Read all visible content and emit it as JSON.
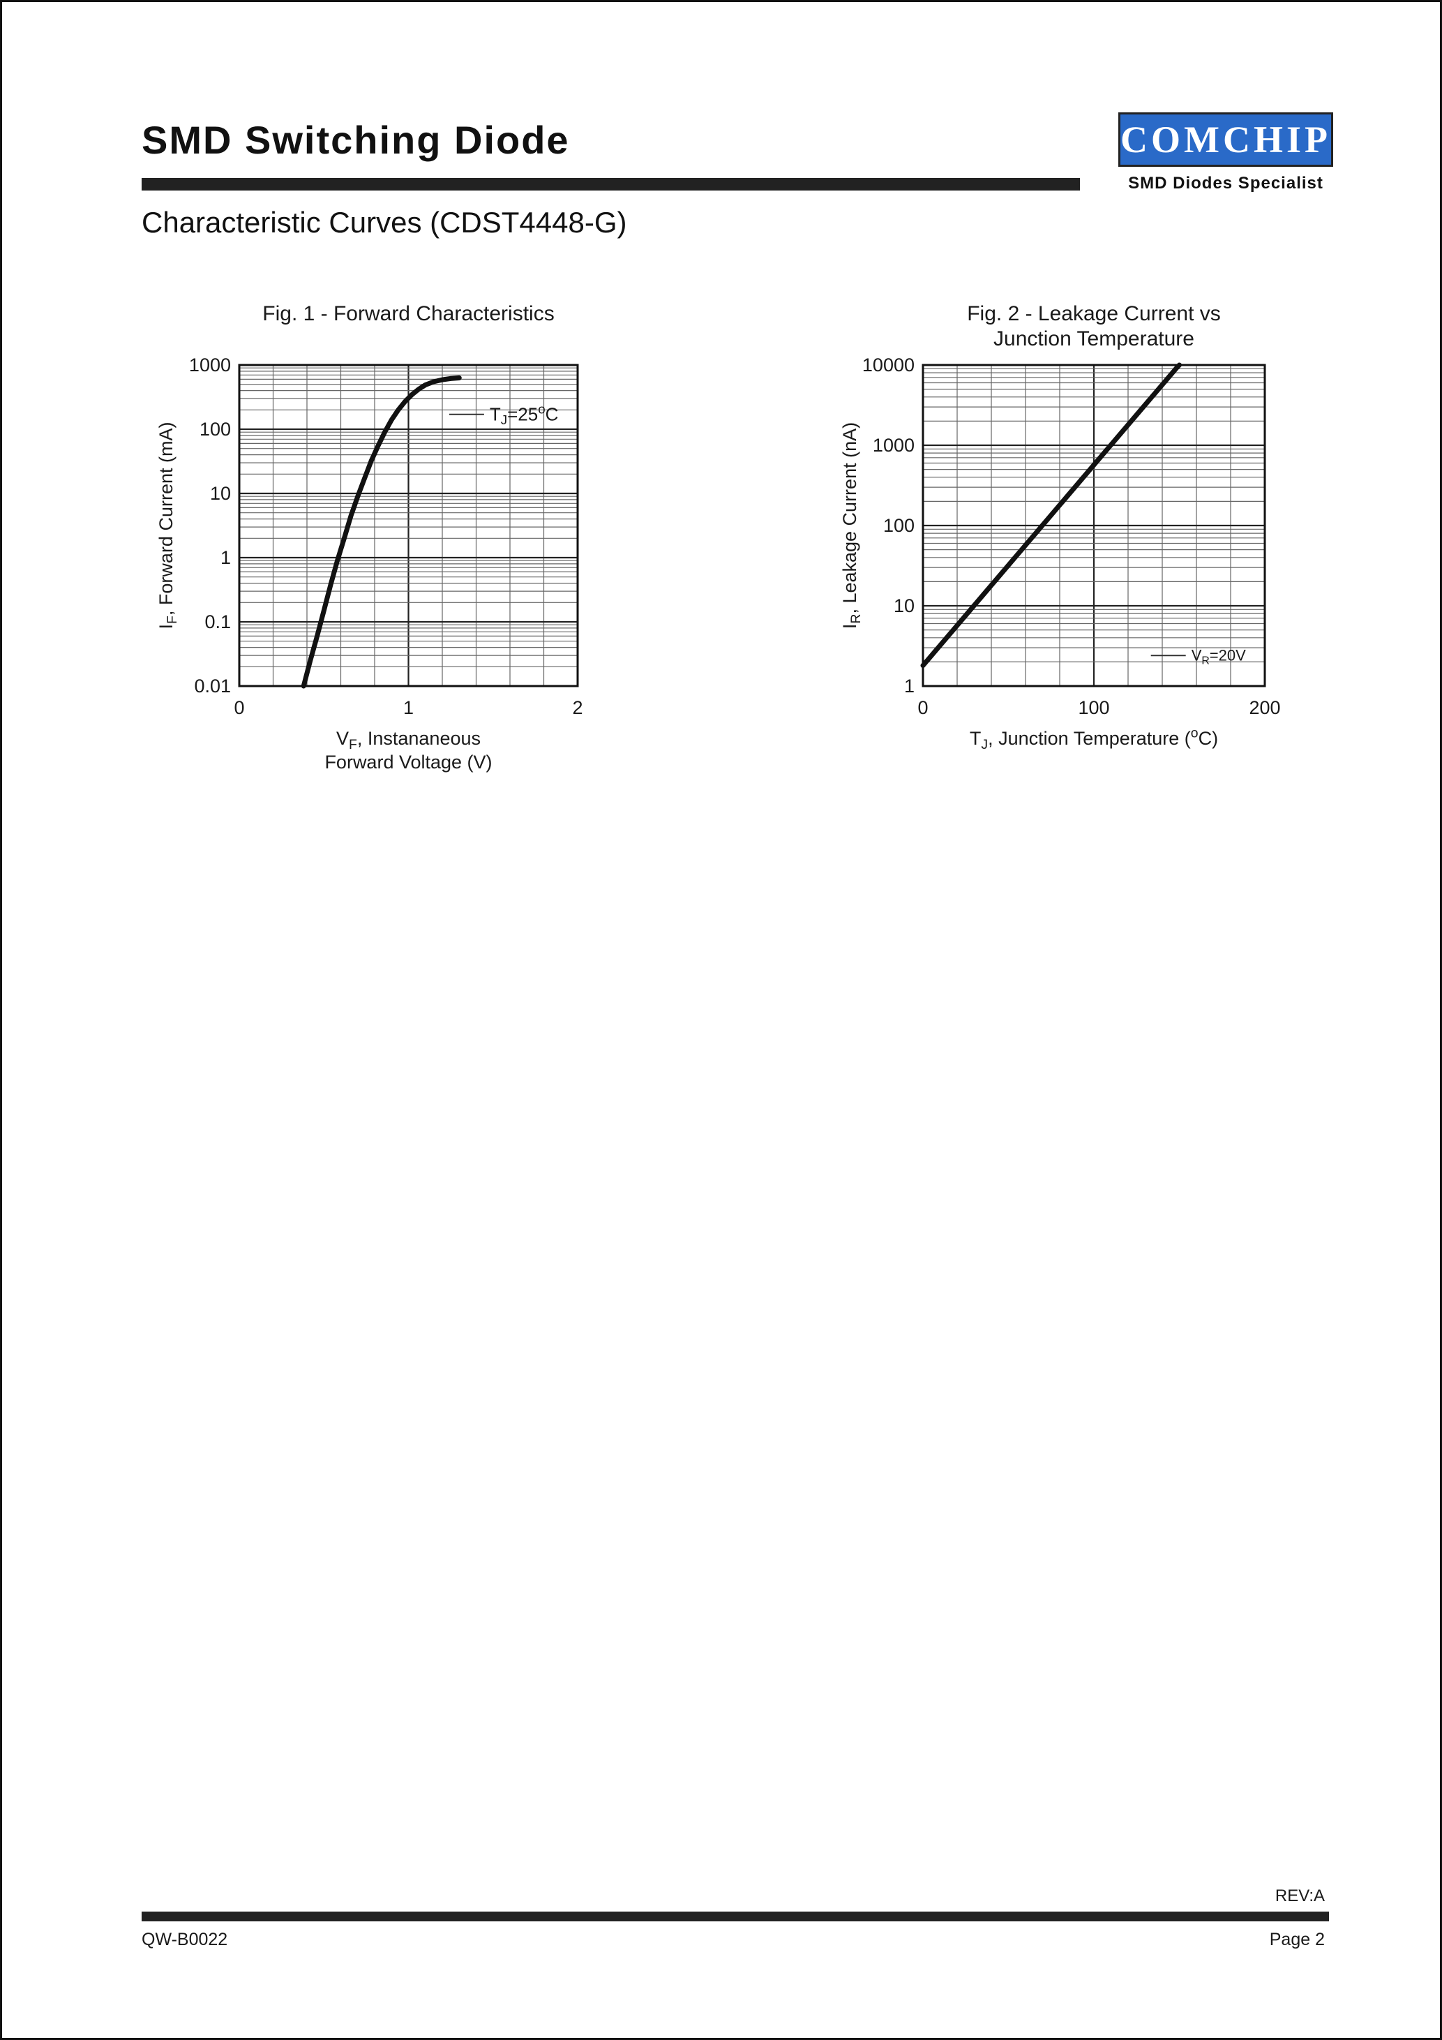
{
  "header": {
    "title": "SMD Switching Diode",
    "logo_text": "COMCHIP",
    "logo_tagline": "SMD Diodes Specialist",
    "subtitle": "Characteristic Curves (CDST4448-G)"
  },
  "footer": {
    "rev": "REV:A",
    "doc_number": "QW-B0022",
    "page": "Page 2"
  },
  "colors": {
    "logo_blue": "#2a6ac8",
    "ink": "#1a1a1a",
    "grid_minor": "#666666",
    "grid_major": "#222222"
  },
  "chart_data": [
    {
      "type": "line",
      "title_lines": [
        "Fig. 1 - Forward Characteristics"
      ],
      "xlabel_lines": [
        [
          {
            "t": "V"
          },
          {
            "t": "F",
            "sub": true
          },
          {
            "t": ", Instananeous"
          }
        ],
        [
          {
            "t": "Forward Voltage (V)"
          }
        ]
      ],
      "ylabel_segs": [
        {
          "t": "I"
        },
        {
          "t": "F",
          "sub": true
        },
        {
          "t": ", Forward Current (mA)"
        }
      ],
      "x": {
        "min": 0,
        "max": 2,
        "minor_step": 0.2,
        "ticks": [
          {
            "v": 0,
            "label": "0"
          },
          {
            "v": 1,
            "label": "1"
          },
          {
            "v": 2,
            "label": "2"
          }
        ]
      },
      "y": {
        "scale": "log",
        "min": 0.01,
        "max": 1000,
        "ticks": [
          {
            "v": 1000,
            "label": "1000"
          },
          {
            "v": 100,
            "label": "100"
          },
          {
            "v": 10,
            "label": "10"
          },
          {
            "v": 1,
            "label": "1"
          },
          {
            "v": 0.1,
            "label": "0.1"
          },
          {
            "v": 0.01,
            "label": "0.01"
          }
        ]
      },
      "annotation": {
        "segs": [
          {
            "t": "T"
          },
          {
            "t": "J",
            "sub": true
          },
          {
            "t": "=25"
          },
          {
            "t": "o",
            "sup": true
          },
          {
            "t": "C"
          }
        ],
        "x": 1.48,
        "y": 170
      },
      "series": [
        {
          "name": "Forward current vs forward voltage at TJ=25C",
          "points": [
            [
              0.38,
              0.01
            ],
            [
              0.42,
              0.025
            ],
            [
              0.46,
              0.06
            ],
            [
              0.5,
              0.15
            ],
            [
              0.54,
              0.38
            ],
            [
              0.58,
              0.9
            ],
            [
              0.62,
              2
            ],
            [
              0.66,
              4.5
            ],
            [
              0.7,
              9
            ],
            [
              0.74,
              17
            ],
            [
              0.78,
              32
            ],
            [
              0.82,
              55
            ],
            [
              0.86,
              90
            ],
            [
              0.9,
              140
            ],
            [
              0.94,
              200
            ],
            [
              0.98,
              270
            ],
            [
              1.02,
              345
            ],
            [
              1.06,
              420
            ],
            [
              1.1,
              490
            ],
            [
              1.15,
              550
            ],
            [
              1.2,
              590
            ],
            [
              1.25,
              615
            ],
            [
              1.3,
              630
            ]
          ]
        }
      ]
    },
    {
      "type": "line",
      "title_lines": [
        "Fig. 2 - Leakage Current vs",
        "Junction Temperature"
      ],
      "xlabel_lines": [
        [
          {
            "t": "T"
          },
          {
            "t": "J",
            "sub": true
          },
          {
            "t": ", Junction Temperature ("
          },
          {
            "t": "o",
            "sup": true
          },
          {
            "t": "C)"
          }
        ]
      ],
      "ylabel_segs": [
        {
          "t": "I"
        },
        {
          "t": "R",
          "sub": true
        },
        {
          "t": ", Leakage Current (nA)"
        }
      ],
      "x": {
        "min": 0,
        "max": 200,
        "minor_step": 20,
        "ticks": [
          {
            "v": 0,
            "label": "0"
          },
          {
            "v": 100,
            "label": "100"
          },
          {
            "v": 200,
            "label": "200"
          }
        ]
      },
      "y": {
        "scale": "log",
        "min": 1,
        "max": 10000,
        "ticks": [
          {
            "v": 10000,
            "label": "10000"
          },
          {
            "v": 1000,
            "label": "1000"
          },
          {
            "v": 100,
            "label": "100"
          },
          {
            "v": 10,
            "label": "10"
          },
          {
            "v": 1,
            "label": "1"
          }
        ]
      },
      "annotation": {
        "segs": [
          {
            "t": "V"
          },
          {
            "t": "R",
            "sub": true
          },
          {
            "t": "=20V"
          }
        ],
        "x": 157,
        "y": 2.4
      },
      "series": [
        {
          "name": "Leakage current vs junction temperature at VR=20V",
          "points": [
            [
              0,
              1.8
            ],
            [
              25,
              7.6
            ],
            [
              50,
              32
            ],
            [
              75,
              135
            ],
            [
              100,
              569
            ],
            [
              125,
              2400
            ],
            [
              148,
              9000
            ],
            [
              150,
              10000
            ]
          ]
        }
      ]
    }
  ]
}
